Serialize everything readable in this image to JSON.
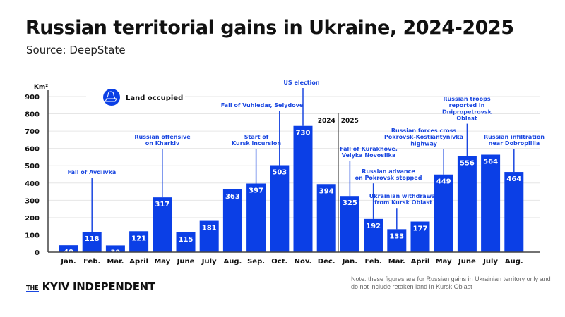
{
  "header": {
    "title": "Russian territorial gains in Ukraine, 2024-2025",
    "subtitle": "Source: DeepState"
  },
  "footer": {
    "logo_the": "THE",
    "logo_name": "KYIV INDEPENDENT",
    "note": "Note: these figures are for Russian gains in Ukrainian territory only and do not include retaken land in Kursk Oblast"
  },
  "colors": {
    "bar": "#0b3fe6",
    "annotation": "#1a47e0",
    "text": "#111111"
  },
  "chart_data": {
    "type": "bar",
    "title": "Russian territorial gains in Ukraine, 2024-2025",
    "ylabel": "Km²",
    "ylim": [
      0,
      900
    ],
    "yticks": [
      0,
      100,
      200,
      300,
      400,
      500,
      600,
      700,
      800,
      900
    ],
    "grid": true,
    "legend": {
      "label": "Land occupied",
      "icon": "map-occupied-icon",
      "placement": "top-left"
    },
    "year_labels": [
      "2024",
      "2025"
    ],
    "categories": [
      "Jan.",
      "Feb.",
      "Mar.",
      "April",
      "May",
      "June",
      "July",
      "Aug.",
      "Sep.",
      "Oct.",
      "Nov.",
      "Dec.",
      "Jan.",
      "Feb.",
      "Mar.",
      "April",
      "May",
      "June",
      "July",
      "Aug."
    ],
    "series": [
      {
        "name": "Land occupied",
        "values": [
          40,
          118,
          39,
          121,
          317,
          115,
          181,
          363,
          397,
          503,
          730,
          394,
          325,
          192,
          133,
          177,
          449,
          556,
          564,
          464
        ]
      }
    ],
    "annotations": [
      {
        "index": 1,
        "lines": [
          "Fall of Avdiivka"
        ]
      },
      {
        "index": 4,
        "lines": [
          "Russian offensive",
          "on Kharkiv"
        ]
      },
      {
        "index": 8,
        "lines": [
          "Start of",
          "Kursk incursion"
        ]
      },
      {
        "index": 9,
        "lines": [
          "Fall of Vuhledar, Selydove"
        ]
      },
      {
        "index": 10,
        "lines": [
          "US election"
        ]
      },
      {
        "index": 12,
        "lines": [
          "Fall of Kurakhove,",
          "Velyka Novosilka"
        ]
      },
      {
        "index": 13,
        "lines": [
          "Russian advance",
          "on Pokrovsk stopped"
        ]
      },
      {
        "index": 14,
        "lines": [
          "Ukrainian withdrawal",
          "from Kursk Oblast"
        ]
      },
      {
        "index": 16,
        "lines": [
          "Russian forces cross",
          "Pokrovsk-Kostiantynivka",
          "highway"
        ]
      },
      {
        "index": 17,
        "lines": [
          "Russian troops",
          "reported in",
          "Dnipropetrovsk",
          "Oblast"
        ]
      },
      {
        "index": 19,
        "lines": [
          "Russian infiltration",
          "near Dobropillia"
        ]
      }
    ]
  }
}
